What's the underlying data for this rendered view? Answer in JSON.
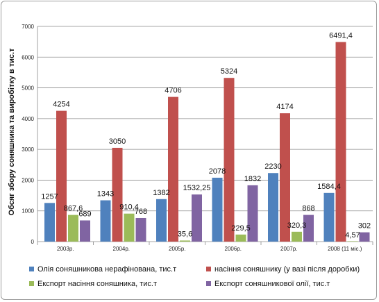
{
  "chart_data": {
    "type": "bar",
    "ylabel": "Обсяг збору соняшника та виробітку в тис.т",
    "ylim": [
      0,
      7000
    ],
    "y_ticks": [
      0,
      1000,
      2000,
      3000,
      4000,
      5000,
      6000,
      7000
    ],
    "categories": [
      "2003р.",
      "2004р.",
      "2005р.",
      "2006р.",
      "2007р.",
      "2008 (11 міс.)"
    ],
    "grid": true,
    "legend_position": "bottom",
    "series": [
      {
        "name": "Олія соняшникова  нерафінована, тис.т",
        "color": "#4F81BD",
        "values": [
          1257,
          1343,
          1382,
          2078,
          2230,
          1584.4
        ],
        "labels": [
          "1257",
          "1343",
          "1382",
          "2078",
          "2230",
          "1584,4"
        ]
      },
      {
        "name": "насіння соняшнику  (у вазі після доробки)",
        "color": "#C0504D",
        "values": [
          4254,
          3050,
          4706,
          5324,
          4174,
          6491.4
        ],
        "labels": [
          "4254",
          "3050",
          "4706",
          "5324",
          "4174",
          "6491,4"
        ]
      },
      {
        "name": "Експорт насіння соняшника, тис.т",
        "color": "#9BBB59",
        "values": [
          867.6,
          910.4,
          35.6,
          229.5,
          320.3,
          4.57
        ],
        "labels": [
          "867,6",
          "910,4",
          "35,6",
          "229,5",
          "320,3",
          "4,57"
        ]
      },
      {
        "name": "Експорт соняшникової олії, тис.т",
        "color": "#8064A2",
        "values": [
          689,
          768,
          1532.25,
          1832,
          868,
          302
        ],
        "labels": [
          "689",
          "768",
          "1532,25",
          "1832",
          "868",
          "302"
        ]
      }
    ]
  }
}
